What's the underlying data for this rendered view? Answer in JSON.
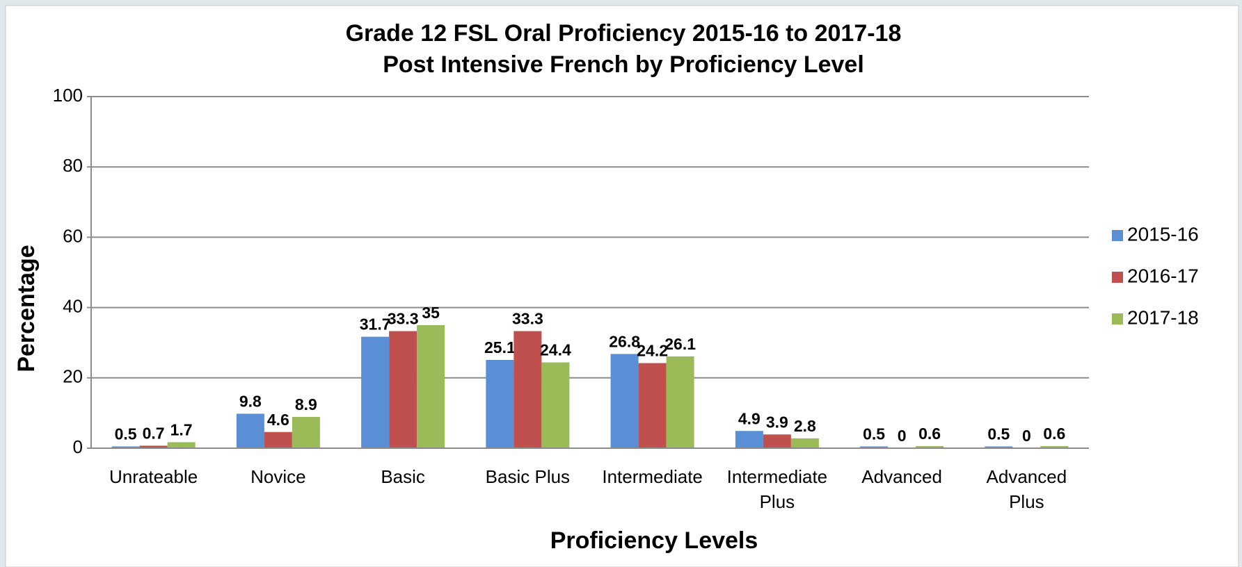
{
  "chart_data": {
    "type": "bar",
    "title": "Grade 12 FSL Oral Proficiency 2015-16 to 2017-18",
    "subtitle": "Post Intensive French by Proficiency Level",
    "x_label": "Proficiency Levels",
    "y_label": "Percentage",
    "categories": [
      "Unrateable",
      "Novice",
      "Basic",
      "Basic Plus",
      "Intermediate",
      "Intermediate Plus",
      "Advanced",
      "Advanced Plus"
    ],
    "series": [
      {
        "name": "2015-16",
        "color": "#5a8fd6",
        "values": [
          0.5,
          9.8,
          31.7,
          25.1,
          26.8,
          4.9,
          0.5,
          0.5
        ]
      },
      {
        "name": "2016-17",
        "color": "#c0504d",
        "values": [
          0.7,
          4.6,
          33.3,
          33.3,
          24.2,
          3.9,
          0,
          0
        ]
      },
      {
        "name": "2017-18",
        "color": "#9bbb59",
        "values": [
          1.7,
          8.9,
          35,
          24.4,
          26.1,
          2.8,
          0.6,
          0.6
        ]
      }
    ],
    "ylim": [
      0,
      100
    ],
    "yticks": [
      0,
      20,
      40,
      60,
      80,
      100
    ],
    "grid": true,
    "legend": "right"
  }
}
